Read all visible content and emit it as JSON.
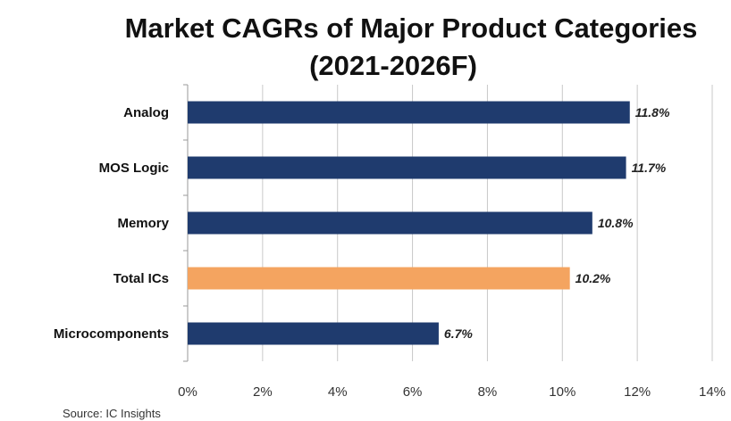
{
  "chart_data": {
    "type": "bar",
    "orientation": "horizontal",
    "title": "Market CAGRs of Major Product Categories",
    "subtitle": "(2021-2026F)",
    "categories": [
      "Analog",
      "MOS Logic",
      "Memory",
      "Total ICs",
      "Microcomponents"
    ],
    "values": [
      11.8,
      11.7,
      10.8,
      10.2,
      6.7
    ],
    "value_labels": [
      "11.8%",
      "11.7%",
      "10.8%",
      "10.2%",
      "6.7%"
    ],
    "bar_colors": [
      "#1f3b6e",
      "#1f3b6e",
      "#1f3b6e",
      "#f4a460",
      "#1f3b6e"
    ],
    "xlim": [
      0,
      14
    ],
    "xticks": [
      0,
      2,
      4,
      6,
      8,
      10,
      12,
      14
    ],
    "xtick_labels": [
      "0%",
      "2%",
      "4%",
      "6%",
      "8%",
      "10%",
      "12%",
      "14%"
    ],
    "grid": true,
    "legend": "none"
  },
  "source": "Source:  IC Insights",
  "colors": {
    "primary": "#1f3b6e",
    "highlight": "#f4a460",
    "grid": "#c8c8c8"
  }
}
